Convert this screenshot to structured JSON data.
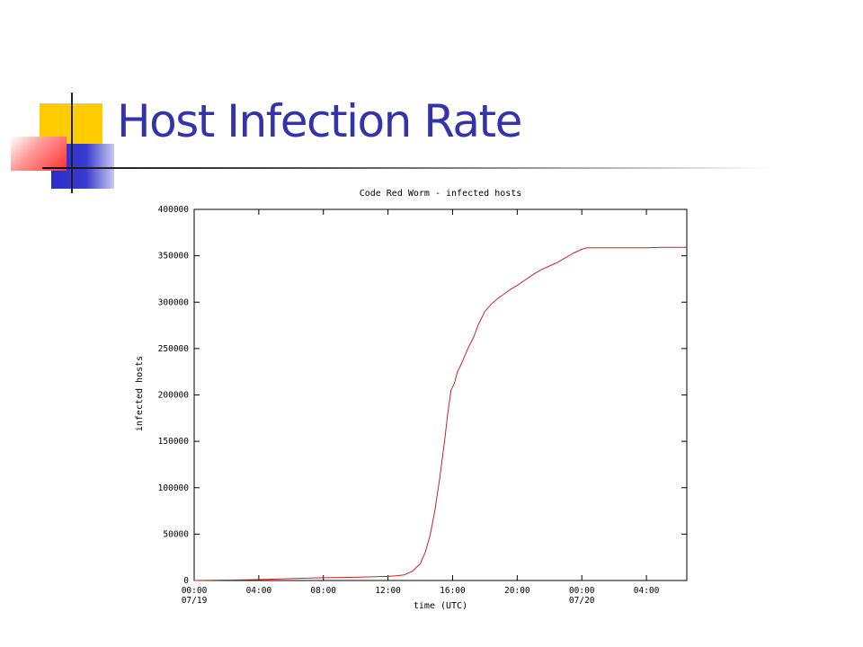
{
  "slide": {
    "title": "Host Infection Rate"
  },
  "chart_data": {
    "type": "line",
    "title": "Code Red Worm - infected hosts",
    "xlabel": "time (UTC)",
    "ylabel": "infected hosts",
    "x_unit": "hours since 00:00 07/19 (UTC)",
    "xlim": [
      0,
      30.5
    ],
    "ylim": [
      0,
      400000
    ],
    "grid": false,
    "line_color": "#cc2222",
    "x_ticks": [
      {
        "value": 0,
        "label": "00:00",
        "sublabel": "07/19"
      },
      {
        "value": 4,
        "label": "04:00",
        "sublabel": ""
      },
      {
        "value": 8,
        "label": "08:00",
        "sublabel": ""
      },
      {
        "value": 12,
        "label": "12:00",
        "sublabel": ""
      },
      {
        "value": 16,
        "label": "16:00",
        "sublabel": ""
      },
      {
        "value": 20,
        "label": "20:00",
        "sublabel": ""
      },
      {
        "value": 24,
        "label": "00:00",
        "sublabel": "07/20"
      },
      {
        "value": 28,
        "label": "04:00",
        "sublabel": ""
      }
    ],
    "y_ticks": [
      0,
      50000,
      100000,
      150000,
      200000,
      250000,
      300000,
      350000,
      400000
    ],
    "series": [
      {
        "name": "",
        "x": [
          0,
          2,
          4,
          6,
          8,
          10,
          11,
          12,
          12.5,
          13,
          13.5,
          14,
          14.3,
          14.6,
          14.9,
          15.2,
          15.5,
          15.7,
          15.9,
          16.1,
          16.3,
          16.5,
          16.7,
          17.0,
          17.3,
          17.6,
          18.0,
          18.4,
          18.8,
          19.2,
          19.6,
          20.0,
          20.5,
          21.0,
          21.5,
          22.0,
          22.5,
          23.0,
          23.5,
          24.0,
          24.3,
          25,
          26,
          27,
          28,
          29,
          30.5
        ],
        "y": [
          0,
          500,
          1000,
          2000,
          3000,
          3500,
          4000,
          4500,
          5000,
          6000,
          10000,
          18000,
          30000,
          48000,
          75000,
          110000,
          150000,
          180000,
          205000,
          212000,
          225000,
          232000,
          240000,
          252000,
          262000,
          276000,
          290000,
          298000,
          304000,
          309000,
          314000,
          318000,
          324000,
          330000,
          335000,
          339000,
          343000,
          348000,
          353000,
          357000,
          358500,
          358500,
          358500,
          358500,
          358500,
          359000,
          359000
        ]
      }
    ]
  }
}
